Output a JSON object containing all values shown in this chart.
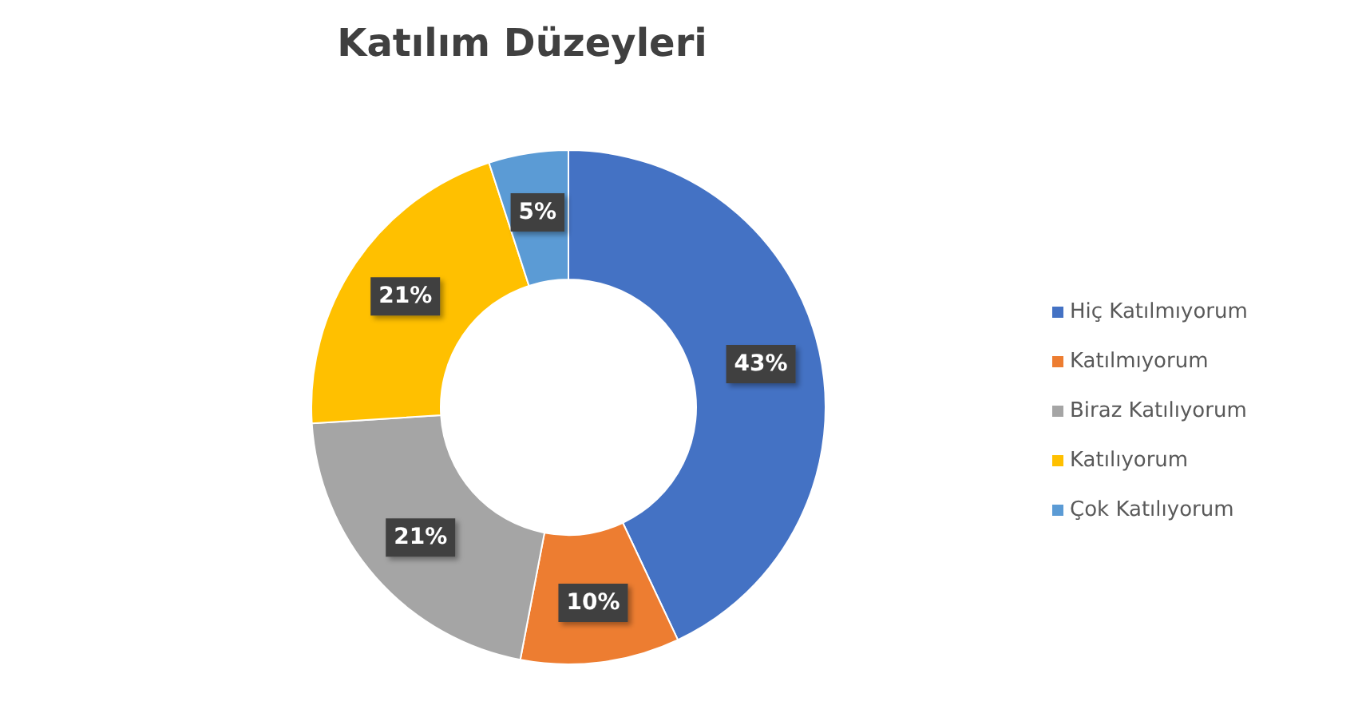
{
  "chart_data": {
    "type": "donut",
    "title": "Katılım Düzeyleri",
    "categories": [
      "Hiç Katılmıyorum",
      "Katılmıyorum",
      "Biraz Katılıyorum",
      "Katılıyorum",
      "Çok Katılıyorum"
    ],
    "values": [
      43,
      10,
      21,
      21,
      5
    ],
    "colors": [
      "#4472c4",
      "#ed7d31",
      "#a5a5a5",
      "#ffc000",
      "#5b9bd5"
    ],
    "value_labels": [
      "43%",
      "10%",
      "21%",
      "21%",
      "5%"
    ],
    "legend": "right"
  }
}
